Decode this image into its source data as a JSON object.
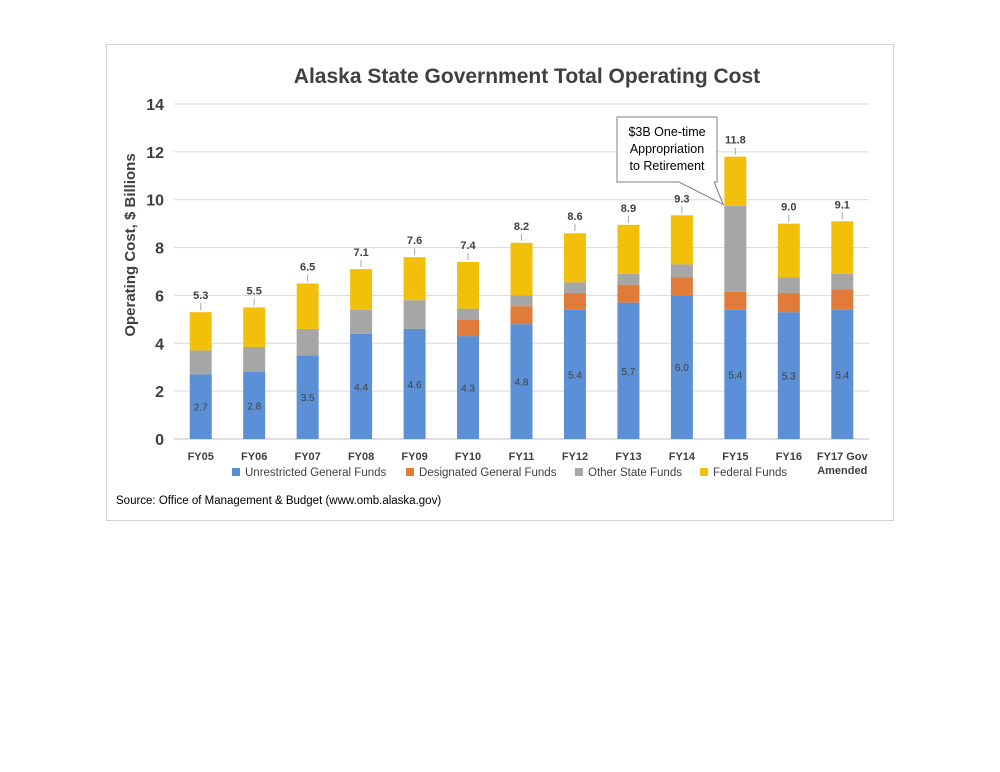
{
  "source_note": "Source: Office of Management & Budget (www.omb.alaska.gov)",
  "chart_data": {
    "type": "bar",
    "stacked": true,
    "title": "Alaska State Government Total Operating Cost",
    "xlabel": "",
    "ylabel": "Operating Cost, $ Billions",
    "ylim": [
      0,
      14
    ],
    "yticks": [
      "0",
      "2",
      "4",
      "6",
      "8",
      "10",
      "12",
      "14"
    ],
    "grid": true,
    "legend_position": "bottom",
    "categories": [
      "FY05",
      "FY06",
      "FY07",
      "FY08",
      "FY09",
      "FY10",
      "FY11",
      "FY12",
      "FY13",
      "FY14",
      "FY15",
      "FY16",
      "FY17 Gov Amended"
    ],
    "category_lines": [
      [
        "FY05"
      ],
      [
        "FY06"
      ],
      [
        "FY07"
      ],
      [
        "FY08"
      ],
      [
        "FY09"
      ],
      [
        "FY10"
      ],
      [
        "FY11"
      ],
      [
        "FY12"
      ],
      [
        "FY13"
      ],
      [
        "FY14"
      ],
      [
        "FY15"
      ],
      [
        "FY16"
      ],
      [
        "FY17 Gov",
        "Amended"
      ]
    ],
    "series": [
      {
        "name": "Unrestricted General Funds",
        "color": "#5b8fd6",
        "values": [
          2.7,
          2.8,
          3.5,
          4.4,
          4.6,
          4.3,
          4.8,
          5.4,
          5.7,
          6.0,
          5.4,
          5.3,
          5.4
        ],
        "labels": [
          "2.7",
          "2.8",
          "3.5",
          "4.4",
          "4.6",
          "4.3",
          "4.8",
          "5.4",
          "5.7",
          "6.0",
          "5.4",
          "5.3",
          "5.4"
        ]
      },
      {
        "name": "Designated General Funds",
        "color": "#e07b39",
        "values": [
          0,
          0,
          0,
          0,
          0,
          0.7,
          0.75,
          0.7,
          0.75,
          0.75,
          0.75,
          0.8,
          0.85
        ]
      },
      {
        "name": "Other State Funds",
        "color": "#a6a6a6",
        "values": [
          1.0,
          1.05,
          1.1,
          1.0,
          1.2,
          0.45,
          0.45,
          0.45,
          0.45,
          0.55,
          3.6,
          0.65,
          0.65
        ]
      },
      {
        "name": "Federal Funds",
        "color": "#f2c00b",
        "values": [
          1.6,
          1.65,
          1.9,
          1.7,
          1.8,
          1.95,
          2.2,
          2.05,
          2.05,
          2.05,
          2.05,
          2.25,
          2.2
        ]
      }
    ],
    "totals": [
      "5.3",
      "5.5",
      "6.5",
      "7.1",
      "7.6",
      "7.4",
      "8.2",
      "8.6",
      "8.9",
      "9.3",
      "11.8",
      "9.0",
      "9.1"
    ],
    "total_values": [
      5.3,
      5.5,
      6.5,
      7.1,
      7.6,
      7.4,
      8.2,
      8.6,
      8.9,
      9.3,
      11.8,
      9.0,
      9.1
    ],
    "annotation": {
      "lines": [
        "$3B One-time",
        "Appropriation",
        "to Retirement"
      ],
      "target_category": "FY15"
    }
  }
}
